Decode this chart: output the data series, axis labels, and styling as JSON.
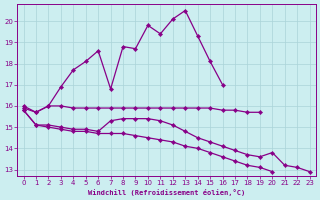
{
  "xlabel": "Windchill (Refroidissement éolien,°C)",
  "background_color": "#cceef0",
  "grid_color": "#aad4d8",
  "line_color": "#880088",
  "xlim": [
    -0.5,
    23.5
  ],
  "ylim": [
    12.7,
    20.8
  ],
  "xticks": [
    0,
    1,
    2,
    3,
    4,
    5,
    6,
    7,
    8,
    9,
    10,
    11,
    12,
    13,
    14,
    15,
    16,
    17,
    18,
    19,
    20,
    21,
    22,
    23
  ],
  "ytick_vals": [
    13,
    14,
    15,
    16,
    17,
    18,
    19,
    20
  ],
  "line1_x": [
    0,
    1,
    2,
    3,
    4,
    5,
    6,
    7,
    8,
    9,
    10,
    11,
    12,
    13,
    14,
    15,
    16,
    17,
    18,
    19,
    20,
    21,
    22,
    23
  ],
  "line1_y": [
    15.9,
    15.7,
    16.0,
    16.9,
    17.7,
    18.1,
    18.6,
    16.8,
    18.8,
    18.7,
    19.8,
    19.4,
    20.1,
    20.5,
    19.3,
    18.1,
    17.0,
    null,
    null,
    null,
    null,
    null,
    null,
    null
  ],
  "line2_x": [
    0,
    1,
    2,
    3,
    4,
    5,
    6,
    7,
    8,
    9,
    10,
    11,
    12,
    13,
    14,
    15,
    16,
    17,
    18,
    19,
    20,
    21,
    22,
    23
  ],
  "line2_y": [
    16.0,
    15.7,
    16.0,
    16.0,
    15.9,
    15.9,
    15.9,
    15.9,
    15.9,
    15.9,
    15.9,
    15.9,
    15.9,
    15.9,
    15.9,
    15.9,
    15.8,
    15.8,
    15.7,
    15.7,
    null,
    null,
    null,
    null
  ],
  "line3_x": [
    0,
    1,
    2,
    3,
    4,
    5,
    6,
    7,
    8,
    9,
    10,
    11,
    12,
    13,
    14,
    15,
    16,
    17,
    18,
    19,
    20,
    21,
    22,
    23
  ],
  "line3_y": [
    15.8,
    15.1,
    15.1,
    15.0,
    14.9,
    14.9,
    14.8,
    15.3,
    15.4,
    15.4,
    15.4,
    15.3,
    15.1,
    14.8,
    14.5,
    14.3,
    14.1,
    13.9,
    13.7,
    13.6,
    13.8,
    13.2,
    13.1,
    12.9
  ],
  "line4_x": [
    0,
    1,
    2,
    3,
    4,
    5,
    6,
    7,
    8,
    9,
    10,
    11,
    12,
    13,
    14,
    15,
    16,
    17,
    18,
    19,
    20,
    21,
    22,
    23
  ],
  "line4_y": [
    15.8,
    15.1,
    15.0,
    14.9,
    14.8,
    14.8,
    14.7,
    14.7,
    14.7,
    14.6,
    14.5,
    14.4,
    14.3,
    14.1,
    14.0,
    13.8,
    13.6,
    13.4,
    13.2,
    13.1,
    12.9,
    null,
    null,
    null
  ]
}
